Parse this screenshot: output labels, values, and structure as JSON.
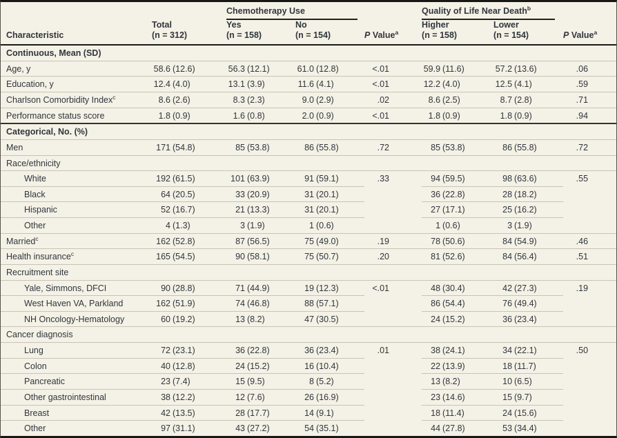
{
  "colors": {
    "background": "#f4f1e6",
    "text": "#30363c",
    "rule_light": "#c7c4b6",
    "rule_dark": "#171713"
  },
  "table": {
    "header": {
      "characteristic": "Characteristic",
      "groups": [
        {
          "label": "Chemotherapy Use",
          "sup": ""
        },
        {
          "label": "Quality of Life Near Death",
          "sup": "b"
        }
      ],
      "columns": [
        {
          "type": "stat",
          "key": "total",
          "line1": "Total",
          "line2": "(n = 312)"
        },
        {
          "type": "stat",
          "key": "yes",
          "line1": "Yes",
          "line2": "(n = 158)"
        },
        {
          "type": "stat",
          "key": "no",
          "line1": "No",
          "line2": "(n = 154)"
        },
        {
          "type": "pvalue",
          "key": "p-value-chemotherapy",
          "italic": "P",
          "label": " Value",
          "sup": "a"
        },
        {
          "type": "stat",
          "key": "higher",
          "line1": "Higher",
          "line2": "(n = 158)"
        },
        {
          "type": "stat",
          "key": "lower",
          "line1": "Lower",
          "line2": "(n = 154)"
        },
        {
          "type": "pvalue",
          "key": "p-value-qol",
          "italic": "P",
          "label": " Value",
          "sup": "a"
        }
      ]
    },
    "rows": [
      {
        "type": "section",
        "label": "Continuous, Mean (SD)"
      },
      {
        "type": "data",
        "label": "Age, y",
        "cells": [
          "58.6 (12.6)",
          "56.3 (12.1)",
          "61.0 (12.8)"
        ],
        "p1": "<.01",
        "cells2": [
          "59.9 (11.6)",
          "57.2 (13.6)"
        ],
        "p2": ".06"
      },
      {
        "type": "data",
        "label": "Education, y",
        "cells": [
          "12.4 (4.0)",
          "13.1 (3.9)",
          "11.6 (4.1)"
        ],
        "p1": "<.01",
        "cells2": [
          "12.2 (4.0)",
          "12.5 (4.1)"
        ],
        "p2": ".59"
      },
      {
        "type": "data",
        "label": "Charlson Comorbidity Index",
        "sup": "c",
        "cells": [
          "8.6 (2.6)",
          "8.3 (2.3)",
          "9.0 (2.9)"
        ],
        "p1": ".02",
        "cells2": [
          "8.6 (2.5)",
          "8.7 (2.8)"
        ],
        "p2": ".71"
      },
      {
        "type": "data",
        "label": "Performance status score",
        "cells": [
          "1.8 (0.9)",
          "1.6 (0.8)",
          "2.0 (0.9)"
        ],
        "p1": "<.01",
        "cells2": [
          "1.8 (0.9)",
          "1.8 (0.9)"
        ],
        "p2": ".94"
      },
      {
        "type": "section",
        "label": "Categorical, No. (%)",
        "dark": true
      },
      {
        "type": "data",
        "label": "Men",
        "cells": [
          "171 (54.8)",
          "85 (53.8)",
          "86 (55.8)"
        ],
        "p1": ".72",
        "cells2": [
          "85 (53.8)",
          "86 (55.8)"
        ],
        "p2": ".72"
      },
      {
        "type": "group",
        "label": "Race/ethnicity"
      },
      {
        "type": "sub",
        "label": "White",
        "cells": [
          "192 (61.5)",
          "101 (63.9)",
          "91 (59.1)"
        ],
        "p1": ".33",
        "cells2": [
          "94 (59.5)",
          "98 (63.6)"
        ],
        "p2": ".55",
        "span": 4
      },
      {
        "type": "sub",
        "label": "Black",
        "cells": [
          "64 (20.5)",
          "33 (20.9)",
          "31 (20.1)"
        ],
        "cells2": [
          "36 (22.8)",
          "28 (18.2)"
        ]
      },
      {
        "type": "sub",
        "label": "Hispanic",
        "cells": [
          "52 (16.7)",
          "21 (13.3)",
          "31 (20.1)"
        ],
        "cells2": [
          "27 (17.1)",
          "25 (16.2)"
        ]
      },
      {
        "type": "sub",
        "label": "Other",
        "cells": [
          "4 (1.3)",
          "3 (1.9)",
          "1 (0.6)"
        ],
        "cells2": [
          "1 (0.6)",
          "3 (1.9)"
        ]
      },
      {
        "type": "data",
        "label": "Married",
        "sup": "c",
        "cells": [
          "162 (52.8)",
          "87 (56.5)",
          "75 (49.0)"
        ],
        "p1": ".19",
        "cells2": [
          "78 (50.6)",
          "84 (54.9)"
        ],
        "p2": ".46"
      },
      {
        "type": "data",
        "label": "Health insurance",
        "sup": "c",
        "cells": [
          "165 (54.5)",
          "90 (58.1)",
          "75 (50.7)"
        ],
        "p1": ".20",
        "cells2": [
          "81 (52.6)",
          "84 (56.4)"
        ],
        "p2": ".51"
      },
      {
        "type": "group",
        "label": "Recruitment site"
      },
      {
        "type": "sub",
        "label": "Yale, Simmons, DFCI",
        "cells": [
          "90 (28.8)",
          "71 (44.9)",
          "19 (12.3)"
        ],
        "p1": "<.01",
        "cells2": [
          "48 (30.4)",
          "42 (27.3)"
        ],
        "p2": ".19",
        "span": 3
      },
      {
        "type": "sub",
        "label": "West Haven VA, Parkland",
        "cells": [
          "162 (51.9)",
          "74 (46.8)",
          "88 (57.1)"
        ],
        "cells2": [
          "86 (54.4)",
          "76 (49.4)"
        ]
      },
      {
        "type": "sub",
        "label": "NH Oncology-Hematology",
        "cells": [
          "60 (19.2)",
          "13 (8.2)",
          "47 (30.5)"
        ],
        "cells2": [
          "24 (15.2)",
          "36 (23.4)"
        ]
      },
      {
        "type": "group",
        "label": "Cancer diagnosis"
      },
      {
        "type": "sub",
        "label": "Lung",
        "cells": [
          "72 (23.1)",
          "36 (22.8)",
          "36 (23.4)"
        ],
        "p1": ".01",
        "cells2": [
          "38 (24.1)",
          "34 (22.1)"
        ],
        "p2": ".50",
        "span": 6
      },
      {
        "type": "sub",
        "label": "Colon",
        "cells": [
          "40 (12.8)",
          "24 (15.2)",
          "16 (10.4)"
        ],
        "cells2": [
          "22 (13.9)",
          "18 (11.7)"
        ]
      },
      {
        "type": "sub",
        "label": "Pancreatic",
        "cells": [
          "23 (7.4)",
          "15 (9.5)",
          "8 (5.2)"
        ],
        "cells2": [
          "13 (8.2)",
          "10 (6.5)"
        ]
      },
      {
        "type": "sub",
        "label": "Other gastrointestinal",
        "cells": [
          "38 (12.2)",
          "12 (7.6)",
          "26 (16.9)"
        ],
        "cells2": [
          "23 (14.6)",
          "15 (9.7)"
        ]
      },
      {
        "type": "sub",
        "label": "Breast",
        "cells": [
          "42 (13.5)",
          "28 (17.7)",
          "14 (9.1)"
        ],
        "cells2": [
          "18 (11.4)",
          "24 (15.6)"
        ]
      },
      {
        "type": "sub",
        "label": "Other",
        "cells": [
          "97 (31.1)",
          "43 (27.2)",
          "54 (35.1)"
        ],
        "cells2": [
          "44 (27.8)",
          "53 (34.4)"
        ]
      }
    ]
  }
}
